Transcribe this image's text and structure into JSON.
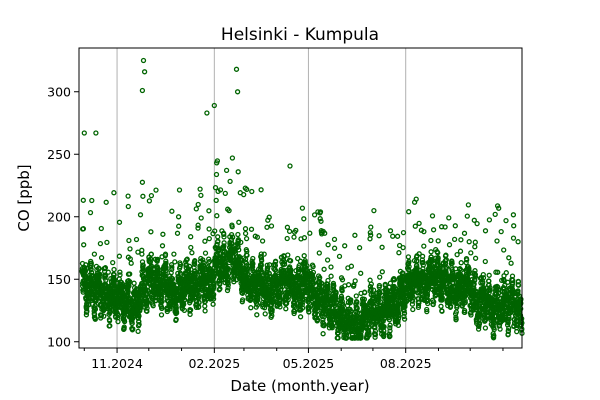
{
  "chart_data": {
    "type": "scatter",
    "title": "Helsinki - Kumpula",
    "xlabel": "Date (month.year)",
    "ylabel": "CO [ppb]",
    "ylim": [
      95,
      335
    ],
    "xlim": [
      "2024-09-26",
      "2025-11-19"
    ],
    "yticks": [
      100,
      150,
      200,
      250,
      300
    ],
    "xticks_major": [
      {
        "date": "2024-11-01",
        "label": "11.2024"
      },
      {
        "date": "2025-02-01",
        "label": "02.2025"
      },
      {
        "date": "2025-05-01",
        "label": "05.2025"
      },
      {
        "date": "2025-08-01",
        "label": "08.2025"
      }
    ],
    "xticks_minor": [
      "2024-10-01",
      "2024-12-01",
      "2025-01-01",
      "2025-03-01",
      "2025-04-01",
      "2025-06-01",
      "2025-07-01",
      "2025-09-01",
      "2025-10-01",
      "2025-11-01"
    ],
    "grid": "x-major",
    "marker": "open-circle",
    "marker_color": "#006400",
    "series": [
      {
        "x": [
          "2024-10-01",
          "2024-10-08",
          "2024-10-15",
          "2024-10-22",
          "2024-10-29",
          "2024-11-05",
          "2024-11-12",
          "2024-11-19",
          "2024-11-26",
          "2024-12-03",
          "2024-12-10",
          "2024-12-17",
          "2024-12-24",
          "2024-12-31",
          "2025-01-07",
          "2025-01-14",
          "2025-01-21",
          "2025-01-28",
          "2025-02-04",
          "2025-02-11",
          "2025-02-18",
          "2025-02-25",
          "2025-03-04",
          "2025-03-11",
          "2025-03-18",
          "2025-03-25",
          "2025-04-01",
          "2025-04-08",
          "2025-04-15",
          "2025-04-22",
          "2025-04-29",
          "2025-05-06",
          "2025-05-13",
          "2025-05-20",
          "2025-05-27",
          "2025-06-03",
          "2025-06-10",
          "2025-06-17",
          "2025-06-24",
          "2025-07-01",
          "2025-07-08",
          "2025-07-15",
          "2025-07-22",
          "2025-07-29",
          "2025-08-05",
          "2025-08-12",
          "2025-08-19",
          "2025-08-26",
          "2025-09-02",
          "2025-09-09",
          "2025-09-16",
          "2025-09-23",
          "2025-09-30",
          "2025-10-07",
          "2025-10-14",
          "2025-10-21",
          "2025-10-28",
          "2025-11-04",
          "2025-11-11",
          "2025-11-18"
        ],
        "y": [
          145,
          142,
          140,
          136,
          138,
          135,
          131,
          128,
          142,
          150,
          145,
          148,
          137,
          140,
          146,
          142,
          150,
          145,
          165,
          160,
          172,
          158,
          150,
          143,
          147,
          140,
          143,
          150,
          145,
          140,
          148,
          138,
          132,
          130,
          125,
          118,
          115,
          112,
          120,
          126,
          122,
          128,
          132,
          138,
          148,
          150,
          145,
          152,
          148,
          147,
          140,
          143,
          148,
          130,
          135,
          126,
          130,
          128,
          132,
          120
        ]
      }
    ],
    "highlights": [
      {
        "x": "2024-10-01",
        "y": 267
      },
      {
        "x": "2024-10-12",
        "y": 267
      },
      {
        "x": "2024-11-26",
        "y": 325
      },
      {
        "x": "2024-11-27",
        "y": 316
      },
      {
        "x": "2024-11-25",
        "y": 301
      },
      {
        "x": "2025-01-25",
        "y": 283
      },
      {
        "x": "2025-02-01",
        "y": 289
      },
      {
        "x": "2025-02-22",
        "y": 318
      },
      {
        "x": "2025-02-23",
        "y": 300
      }
    ]
  }
}
